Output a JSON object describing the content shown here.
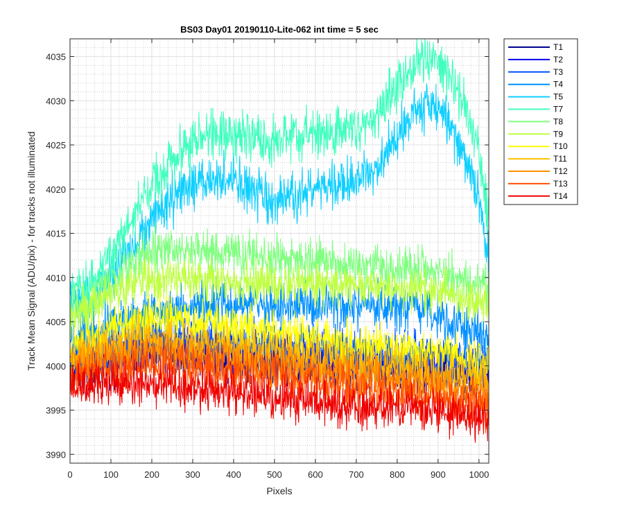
{
  "chart_data": {
    "type": "line",
    "title": "BS03 Day01 20190110-Lite-062 int time = 5 sec",
    "xlabel": "Pixels",
    "ylabel": "Track Mean Signal (ADU/pix) - for tracks not illuminated",
    "xlim": [
      0,
      1024
    ],
    "ylim": [
      3989,
      4037
    ],
    "xticks": [
      0,
      100,
      200,
      300,
      400,
      500,
      600,
      700,
      800,
      900,
      1000
    ],
    "yticks": [
      3990,
      3995,
      4000,
      4005,
      4010,
      4015,
      4020,
      4025,
      4030,
      4035
    ],
    "grid": true,
    "minor_grid": true,
    "legend_position": "outside-top-right",
    "series": [
      {
        "name": "T1",
        "color": "#00008f",
        "noise": 2.2,
        "x": [
          0,
          50,
          100,
          150,
          200,
          250,
          300,
          350,
          400,
          450,
          500,
          550,
          600,
          650,
          700,
          750,
          800,
          850,
          900,
          950,
          1000,
          1024
        ],
        "y": [
          3999.5,
          4000,
          4000.6,
          4001.2,
          4001.5,
          4001.6,
          4001.4,
          4001.2,
          4001,
          4000.8,
          4000.6,
          4000.5,
          4000.3,
          4000.2,
          4000,
          3999.9,
          3999.8,
          3999.6,
          3999.5,
          3999.3,
          3999.2,
          3999.1
        ]
      },
      {
        "name": "T2",
        "color": "#0000ef",
        "noise": 2.2,
        "x": [
          0,
          50,
          100,
          150,
          200,
          250,
          300,
          350,
          400,
          450,
          500,
          550,
          600,
          650,
          700,
          750,
          800,
          850,
          900,
          950,
          1000,
          1024
        ],
        "y": [
          3999.8,
          4000.3,
          4001,
          4001.6,
          4002,
          4002.1,
          4001.9,
          4001.7,
          4001.5,
          4001.3,
          4001.1,
          4001,
          4000.8,
          4000.6,
          4000.4,
          4000.2,
          4000,
          3999.8,
          3999.7,
          3999.5,
          3999.3,
          3999.2
        ]
      },
      {
        "name": "T3",
        "color": "#0050ff",
        "noise": 2.2,
        "x": [
          0,
          50,
          100,
          150,
          200,
          250,
          300,
          350,
          400,
          450,
          500,
          550,
          600,
          650,
          700,
          750,
          800,
          850,
          900,
          950,
          1000,
          1024
        ],
        "y": [
          4000.2,
          4001,
          4002,
          4002.8,
          4003.2,
          4003.3,
          4003.2,
          4003,
          4002.8,
          4002.6,
          4002.4,
          4002.2,
          4002,
          4001.8,
          4001.7,
          4001.5,
          4001.3,
          4001.1,
          4000.9,
          4000.7,
          4000.5,
          4000.4
        ]
      },
      {
        "name": "T4",
        "color": "#0090ff",
        "noise": 2.3,
        "x": [
          0,
          50,
          100,
          150,
          200,
          250,
          300,
          350,
          400,
          450,
          500,
          550,
          600,
          650,
          700,
          750,
          800,
          850,
          900,
          950,
          1000,
          1024
        ],
        "y": [
          4003,
          4003.8,
          4004.6,
          4005.4,
          4006,
          4006.5,
          4006.7,
          4006.8,
          4006.9,
          4006.9,
          4006.9,
          4006.8,
          4006.7,
          4006.6,
          4006.5,
          4006.4,
          4006.4,
          4006.2,
          4005.8,
          4004.8,
          4003.6,
          4002.8
        ]
      },
      {
        "name": "T5",
        "color": "#0fcfff",
        "noise": 2.3,
        "x": [
          0,
          50,
          100,
          150,
          200,
          250,
          300,
          350,
          400,
          450,
          500,
          550,
          600,
          650,
          700,
          750,
          800,
          850,
          900,
          950,
          1000,
          1010,
          1024
        ],
        "y": [
          4007,
          4007.5,
          4010,
          4013.5,
          4016.5,
          4018.8,
          4020.3,
          4021.2,
          4021,
          4019.5,
          4018.3,
          4019,
          4020.2,
          4020.3,
          4020.8,
          4022.5,
          4026.5,
          4029.2,
          4029.3,
          4025.5,
          4019,
          4015,
          4012
        ]
      },
      {
        "name": "T7",
        "color": "#40ffbf",
        "noise": 2.4,
        "x": [
          0,
          50,
          100,
          150,
          200,
          250,
          300,
          350,
          400,
          450,
          500,
          550,
          600,
          650,
          700,
          750,
          800,
          850,
          900,
          950,
          1000,
          1010,
          1024
        ],
        "y": [
          4007.5,
          4009.5,
          4012.5,
          4016.5,
          4020.5,
          4023.5,
          4025.3,
          4026.3,
          4026.2,
          4025.4,
          4025.3,
          4025.9,
          4026.3,
          4026.5,
          4027,
          4028.5,
          4032,
          4034.6,
          4034.7,
          4031.3,
          4024,
          4020,
          4016.5
        ]
      },
      {
        "name": "T8",
        "color": "#80ff80",
        "noise": 2.1,
        "x": [
          0,
          50,
          100,
          150,
          200,
          250,
          300,
          350,
          400,
          450,
          500,
          550,
          600,
          650,
          700,
          750,
          800,
          850,
          900,
          950,
          1000,
          1024
        ],
        "y": [
          4006,
          4007.5,
          4009.5,
          4011.5,
          4012.8,
          4013.3,
          4013.2,
          4012.9,
          4012.6,
          4012.4,
          4012.2,
          4012,
          4011.8,
          4011.6,
          4011.4,
          4011.2,
          4011,
          4010.8,
          4010.5,
          4010,
          4009.2,
          4008.8
        ]
      },
      {
        "name": "T9",
        "color": "#bfff40",
        "noise": 2.0,
        "x": [
          0,
          50,
          100,
          150,
          200,
          250,
          300,
          350,
          400,
          450,
          500,
          550,
          600,
          650,
          700,
          750,
          800,
          850,
          900,
          950,
          1000,
          1024
        ],
        "y": [
          4005.5,
          4006.8,
          4008.2,
          4009.2,
          4009.8,
          4010,
          4009.9,
          4009.7,
          4009.5,
          4009.4,
          4009.3,
          4009.2,
          4009,
          4008.9,
          4008.8,
          4008.7,
          4008.6,
          4008.4,
          4008.2,
          4007.8,
          4007.3,
          4007
        ]
      },
      {
        "name": "T10",
        "color": "#ffff00",
        "noise": 2.1,
        "x": [
          0,
          50,
          100,
          150,
          200,
          250,
          300,
          350,
          400,
          450,
          500,
          550,
          600,
          650,
          700,
          750,
          800,
          850,
          900,
          950,
          1000,
          1024
        ],
        "y": [
          4002,
          4003.2,
          4004.3,
          4005,
          4005.3,
          4005.2,
          4005,
          4004.7,
          4004.4,
          4004.1,
          4003.8,
          4003.5,
          4003.2,
          4002.9,
          4002.6,
          4002.3,
          4002,
          4001.7,
          4001.4,
          4001.1,
          4000.8,
          4000.6
        ]
      },
      {
        "name": "T11",
        "color": "#ffbf00",
        "noise": 2.1,
        "x": [
          0,
          50,
          100,
          150,
          200,
          250,
          300,
          350,
          400,
          450,
          500,
          550,
          600,
          650,
          700,
          750,
          800,
          850,
          900,
          950,
          1000,
          1024
        ],
        "y": [
          4000.5,
          4001.5,
          4002.4,
          4003,
          4003.2,
          4003.1,
          4002.8,
          4002.5,
          4002.2,
          4001.9,
          4001.6,
          4001.3,
          4001,
          4000.7,
          4000.4,
          4000.1,
          3999.8,
          3999.5,
          3999.2,
          3998.9,
          3998.6,
          3998.4
        ]
      },
      {
        "name": "T12",
        "color": "#ff8f00",
        "noise": 2.1,
        "x": [
          0,
          50,
          100,
          150,
          200,
          250,
          300,
          350,
          400,
          450,
          500,
          550,
          600,
          650,
          700,
          750,
          800,
          850,
          900,
          950,
          1000,
          1024
        ],
        "y": [
          3999.5,
          4000.4,
          4001.2,
          4001.7,
          4001.9,
          4001.8,
          4001.5,
          4001.2,
          4000.9,
          4000.6,
          4000.3,
          4000,
          3999.7,
          3999.4,
          3999.1,
          3998.8,
          3998.5,
          3998.2,
          3997.9,
          3997.6,
          3997.3,
          3997.1
        ]
      },
      {
        "name": "T13",
        "color": "#ff5000",
        "noise": 2.1,
        "x": [
          0,
          50,
          100,
          150,
          200,
          250,
          300,
          350,
          400,
          450,
          500,
          550,
          600,
          650,
          700,
          750,
          800,
          850,
          900,
          950,
          1000,
          1024
        ],
        "y": [
          3998.5,
          3999.2,
          3999.9,
          4000.3,
          4000.4,
          4000.2,
          3999.9,
          3999.6,
          3999.3,
          3999,
          3998.7,
          3998.4,
          3998.1,
          3997.8,
          3997.5,
          3997.2,
          3996.9,
          3996.6,
          3996.3,
          3996,
          3995.7,
          3995.5
        ]
      },
      {
        "name": "T14",
        "color": "#ef0000",
        "noise": 2.1,
        "x": [
          0,
          50,
          100,
          150,
          200,
          250,
          300,
          350,
          400,
          450,
          500,
          550,
          600,
          650,
          700,
          750,
          800,
          850,
          900,
          950,
          1000,
          1024
        ],
        "y": [
          3997.5,
          3997.7,
          3997.9,
          3998,
          3998,
          3997.8,
          3997.5,
          3997.2,
          3996.9,
          3996.6,
          3996.4,
          3996.2,
          3996,
          3995.8,
          3995.6,
          3995.4,
          3995.2,
          3995,
          3994.8,
          3994.6,
          3994.4,
          3994.3
        ]
      }
    ]
  }
}
